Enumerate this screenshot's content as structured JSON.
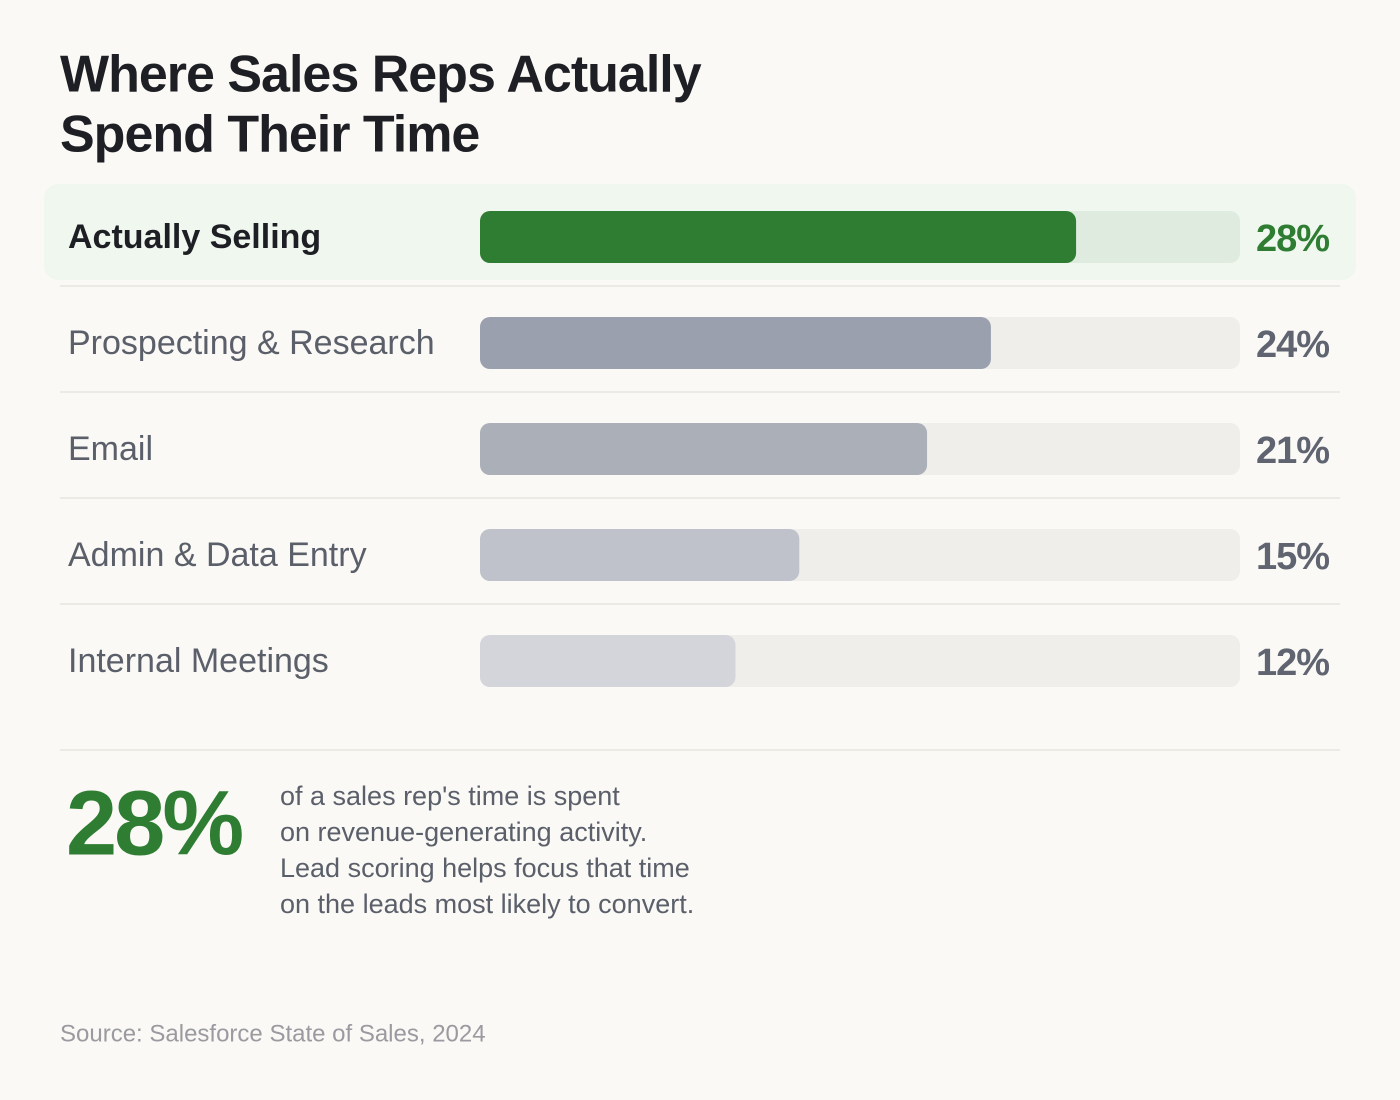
{
  "chart_data": {
    "type": "bar",
    "orientation": "horizontal",
    "title": [
      "Where Sales Reps Actually",
      "Spend Their Time"
    ],
    "categories": [
      "Actually Selling",
      "Prospecting & Research",
      "Email",
      "Admin & Data Entry",
      "Internal Meetings"
    ],
    "values": [
      28,
      24,
      21,
      15,
      12
    ],
    "value_labels": [
      "28%",
      "24%",
      "21%",
      "15%",
      "12%"
    ],
    "colors": [
      "#2e7d32",
      "#9aa0ad",
      "#aaafb8",
      "#bfc2ca",
      "#d3d5da"
    ],
    "xlim": [
      0,
      35.7
    ],
    "callout": {
      "value": 28,
      "label": "28%",
      "lines": [
        "of a sales rep's time is spent",
        "on revenue-generating activity.",
        "Lead scoring helps focus that time",
        "on the leads most likely to convert."
      ]
    },
    "source": "Source: Salesforce State of Sales, 2024"
  }
}
